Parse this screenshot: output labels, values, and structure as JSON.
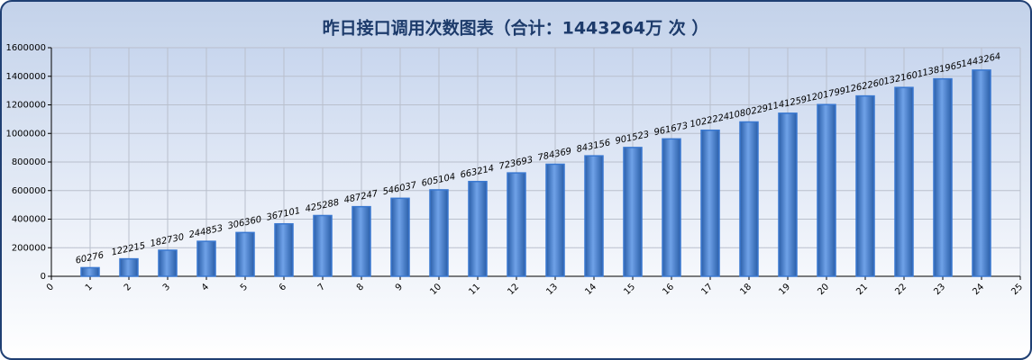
{
  "chart_data": {
    "type": "bar",
    "title": "昨日接口调用次数图表（合计：1443264万 次 ）",
    "x": [
      1,
      2,
      3,
      4,
      5,
      6,
      7,
      8,
      9,
      10,
      11,
      12,
      13,
      14,
      15,
      16,
      17,
      18,
      19,
      20,
      21,
      22,
      23,
      24
    ],
    "values": [
      60276,
      122215,
      182730,
      244853,
      306360,
      367101,
      425288,
      487247,
      546037,
      605104,
      663214,
      723693,
      784369,
      843156,
      901523,
      961673,
      1022224,
      1080229,
      1141259,
      1201799,
      1262260,
      1321601,
      1381965,
      1443264
    ],
    "color": "#3a78d0",
    "xlim": [
      0,
      25
    ],
    "xticks": [
      0,
      1,
      2,
      3,
      4,
      5,
      6,
      7,
      8,
      9,
      10,
      11,
      12,
      13,
      14,
      15,
      16,
      17,
      18,
      19,
      20,
      21,
      22,
      23,
      24,
      25
    ],
    "ylim": [
      0,
      1600000
    ],
    "yticks": [
      0,
      200000,
      400000,
      600000,
      800000,
      1000000,
      1200000,
      1400000,
      1600000
    ],
    "grid": true
  }
}
